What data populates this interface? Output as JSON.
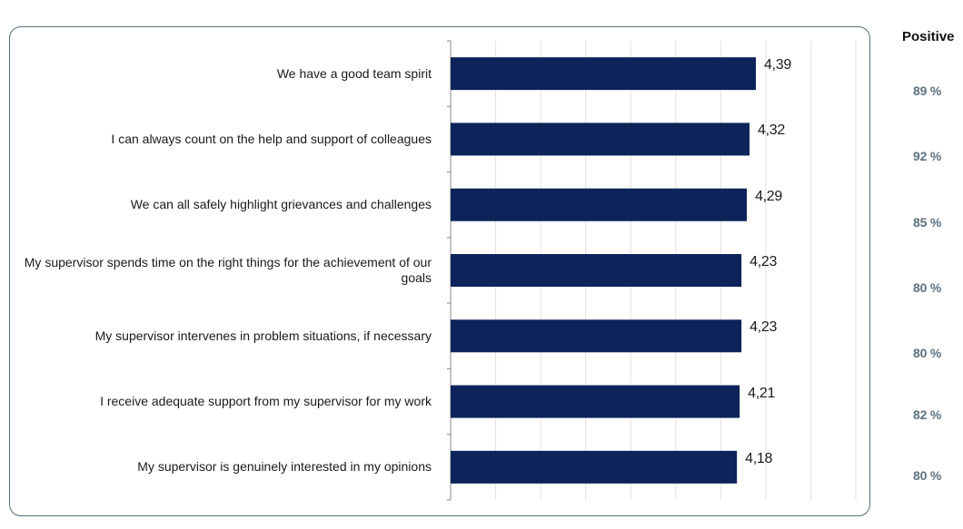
{
  "chart_data": {
    "type": "bar",
    "orientation": "horizontal",
    "categories": [
      "We have a good team spirit",
      "I can always count on the help and support of colleagues",
      "We can all safely highlight grievances and challenges",
      "My supervisor spends time on the right things for the achievement of our goals",
      "My supervisor intervenes in problem situations, if necessary",
      "I receive adequate support from my supervisor for my work",
      "My supervisor is genuinely interested in my opinions"
    ],
    "values": [
      4.39,
      4.32,
      4.29,
      4.23,
      4.23,
      4.21,
      4.18
    ],
    "value_labels": [
      "4,39",
      "4,32",
      "4,29",
      "4,23",
      "4,23",
      "4,21",
      "4,18"
    ],
    "xlim": [
      1,
      5.5
    ],
    "grid": true,
    "bar_color": "#0d2359",
    "positive": {
      "header": "Positive",
      "values": [
        "89 %",
        "92 %",
        "85 %",
        "80 %",
        "80 %",
        "82 %",
        "80 %"
      ]
    }
  }
}
